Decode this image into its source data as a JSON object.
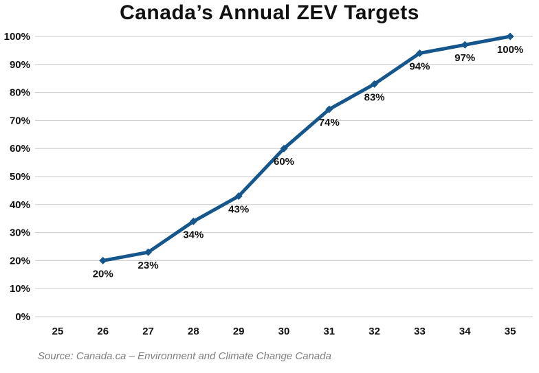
{
  "title": "Canada’s Annual ZEV Targets",
  "source": "Source: Canada.ca – Environment and Climate Change Canada",
  "colors": {
    "line": "#15568D",
    "marker": "#15568D",
    "grid": "#c9c9c9",
    "axis_text": "#111111",
    "data_label_text": "#111111",
    "title_text": "#111111",
    "source_text": "#7f7f7f",
    "background": "#ffffff"
  },
  "chart_data": {
    "type": "line",
    "title": "Canada’s Annual ZEV Targets",
    "xlabel": "",
    "ylabel": "",
    "categories": [
      "25",
      "26",
      "27",
      "28",
      "29",
      "30",
      "31",
      "32",
      "33",
      "34",
      "35"
    ],
    "series": [
      {
        "name": "Annual ZEV target share",
        "values": [
          null,
          20,
          23,
          34,
          43,
          60,
          74,
          83,
          94,
          97,
          100
        ]
      }
    ],
    "data_labels": [
      "20%",
      "23%",
      "34%",
      "43%",
      "60%",
      "74%",
      "83%",
      "94%",
      "97%",
      "100%"
    ],
    "y_ticks": [
      "0%",
      "10%",
      "20%",
      "30%",
      "40%",
      "50%",
      "60%",
      "70%",
      "80%",
      "90%",
      "100%"
    ],
    "y_tick_values": [
      0,
      10,
      20,
      30,
      40,
      50,
      60,
      70,
      80,
      90,
      100
    ],
    "ylim": [
      0,
      100
    ],
    "grid": true,
    "legend": false,
    "marker": "diamond",
    "line_width": 5
  }
}
